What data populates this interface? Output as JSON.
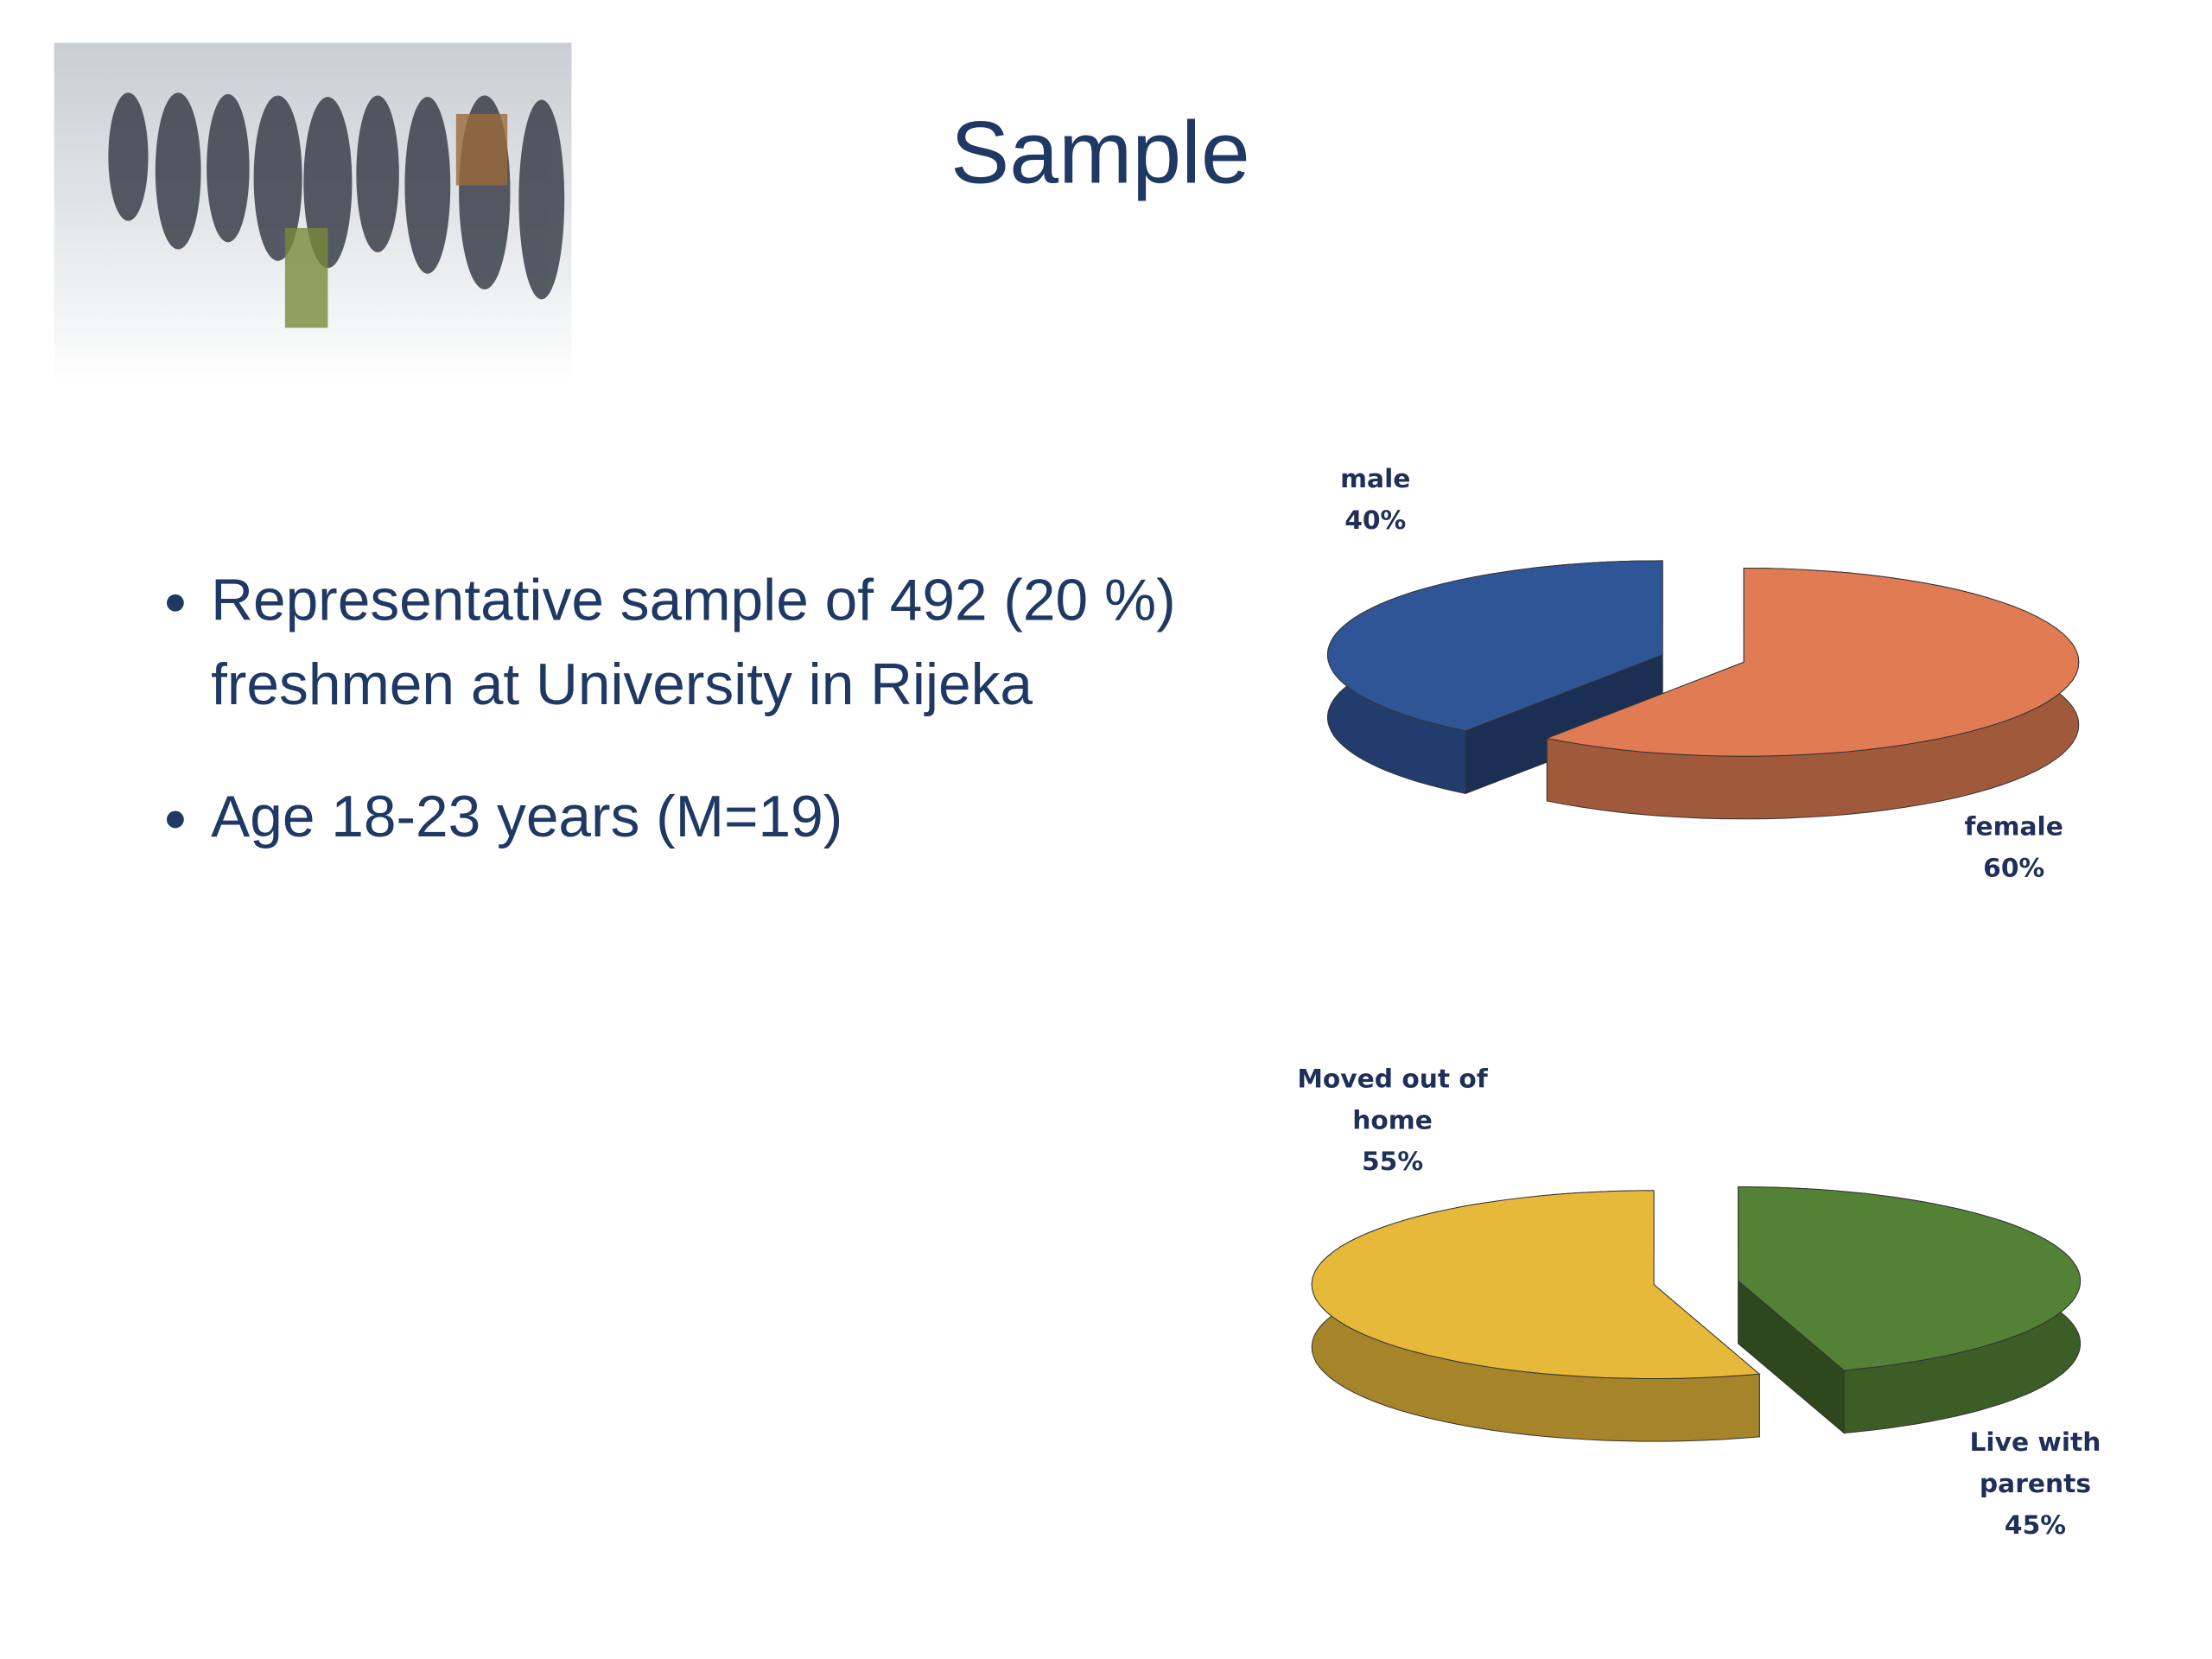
{
  "title": "Sample",
  "bullets": [
    "Representative sample of 492 (20 %) freshmen at University in Rijeka",
    "Age 18-23 years (M=19)"
  ],
  "chart_data": [
    {
      "type": "pie",
      "categories": [
        "male",
        "female"
      ],
      "values": [
        40,
        60
      ],
      "value_labels": [
        "40%",
        "60%"
      ],
      "colors": [
        "#2f5597",
        "#e07b54"
      ]
    },
    {
      "type": "pie",
      "categories": [
        "Moved out of home",
        "Live with parents"
      ],
      "values": [
        55,
        45
      ],
      "value_labels": [
        "55%",
        "45%"
      ],
      "colors": [
        "#e6b93a",
        "#538135"
      ]
    }
  ]
}
